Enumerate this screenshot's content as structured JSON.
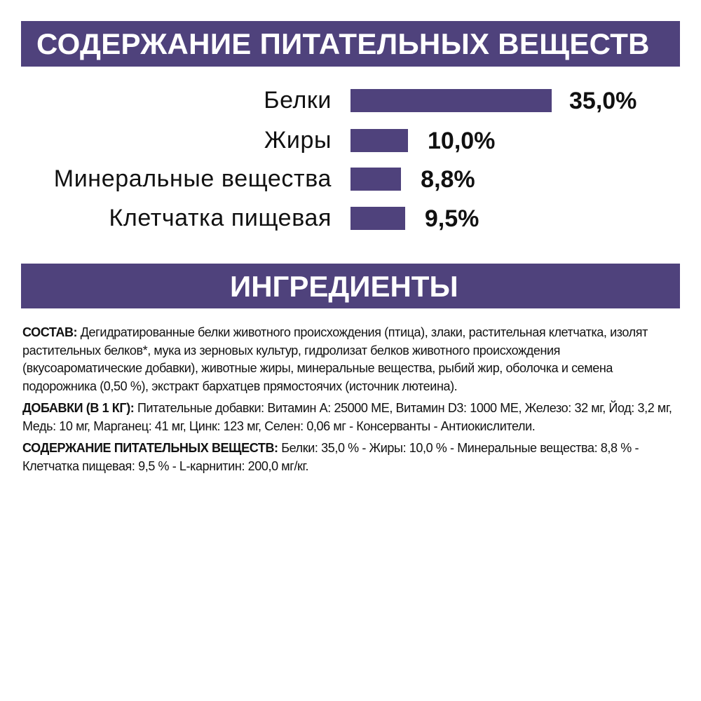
{
  "header1": "СОДЕРЖАНИЕ ПИТАТЕЛЬНЫХ ВЕЩЕСТВ",
  "header2": "ИНГРЕДИЕНТЫ",
  "accent_color": "#4f427c",
  "chart_data": {
    "type": "bar",
    "orientation": "horizontal",
    "categories": [
      "Белки",
      "Жиры",
      "Минеральные вещества",
      "Клетчатка пищевая"
    ],
    "values": [
      35.0,
      10.0,
      8.8,
      9.5
    ],
    "value_labels": [
      "35,0%",
      "10,0%",
      "8,8%",
      "9,5%"
    ],
    "unit": "%",
    "grid": false
  },
  "paragraphs": [
    {
      "label": "СОСТАВ:",
      "text": " Дегидратированные белки животного происхождения (птица), злаки, растительная клетчатка, изолят растительных белков*, мука из зерновых культур, гидролизат белков животного происхождения (вкусоароматические добавки), животные жиры, минеральные вещества, рыбий жир, оболочка и семена подорожника (0,50 %), экстракт бархатцев прямостоячих (источник лютеина)."
    },
    {
      "label": "ДОБАВКИ (В 1 КГ):",
      "text": " Питательные добавки: Витамин А: 25000 МЕ, Витамин D3: 1000 МЕ, Железо: 32 мг, Йод: 3,2 мг, Медь: 10 мг, Марганец: 41 мг, Цинк: 123 мг, Селен: 0,06 мг - Консерванты - Антиокислители."
    },
    {
      "label": "СОДЕРЖАНИЕ ПИТАТЕЛЬНЫХ ВЕЩЕСТВ:",
      "text": " Белки: 35,0 % - Жиры: 10,0 % - Минеральные вещества: 8,8 % - Клетчатка пищевая: 9,5 % - L-карнитин: 200,0 мг/кг."
    }
  ]
}
